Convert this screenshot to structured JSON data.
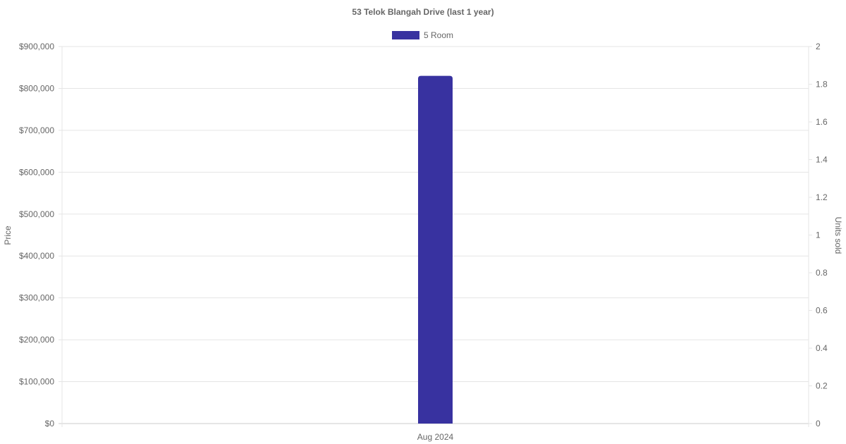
{
  "chart_data": {
    "type": "bar",
    "title": "53 Telok Blangah Drive (last 1 year)",
    "categories": [
      "Aug 2024"
    ],
    "series": [
      {
        "name": "5 Room",
        "values": [
          830000
        ],
        "color": "#3832a0"
      }
    ],
    "ylabel": "Price",
    "ylabel_right": "Units sold",
    "ylim": [
      0,
      900000
    ],
    "ylim_right": [
      0,
      2
    ],
    "yticks": [
      "$0",
      "$100,000",
      "$200,000",
      "$300,000",
      "$400,000",
      "$500,000",
      "$600,000",
      "$700,000",
      "$800,000",
      "$900,000"
    ],
    "yticks_right": [
      "0",
      "0.2",
      "0.4",
      "0.6",
      "0.8",
      "1",
      "1.2",
      "1.4",
      "1.6",
      "1.8",
      "2"
    ],
    "grid": true,
    "legend": "top"
  }
}
